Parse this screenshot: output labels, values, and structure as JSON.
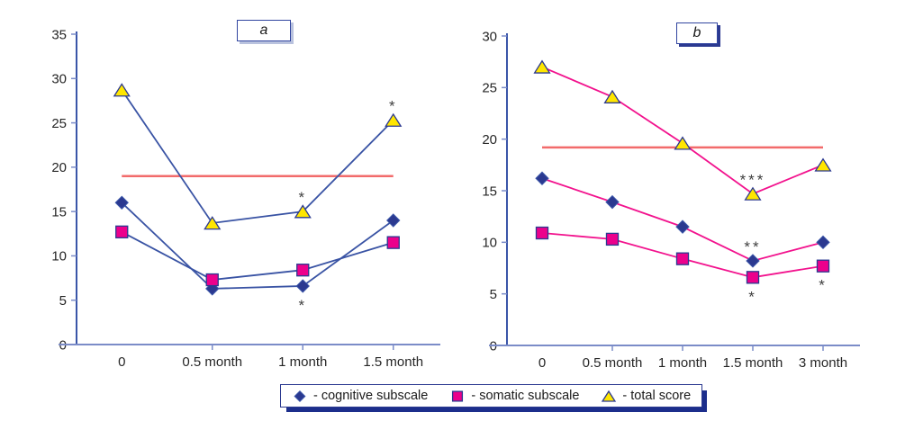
{
  "figure": {
    "background": "#ffffff"
  },
  "colors": {
    "y_axis": "#3a55a8",
    "x_axis": "#7b8cc8",
    "tick": "#7b8cc8",
    "tick_label": "#262626",
    "annotation": "#404040",
    "navy_marker": "#2b3990",
    "magenta_marker": "#ec008c",
    "yellow_marker": "#ffe600",
    "reference_red": "#f26b6b"
  },
  "legend": {
    "position": "bottom-center",
    "items": [
      {
        "marker": "diamond",
        "color": "#2b3990",
        "stroke": "#3a55a8",
        "label": "- cognitive subscale"
      },
      {
        "marker": "square",
        "color": "#ec008c",
        "stroke": "#2b3990",
        "label": "- somatic subscale"
      },
      {
        "marker": "triangle",
        "color": "#ffe600",
        "stroke": "#2b3990",
        "label": "- total score"
      }
    ]
  },
  "chart_data": [
    {
      "type": "line",
      "title": "a",
      "categories": [
        "0",
        "0.5 month",
        "1 month",
        "1.5 month"
      ],
      "xlabel": "",
      "ylabel": "",
      "ylim": [
        0,
        35
      ],
      "ytick_step": 5,
      "grid": false,
      "line_color": "#3953a4",
      "reference_line": {
        "value": 19,
        "color": "#f26b6b"
      },
      "series": [
        {
          "name": "cognitive subscale",
          "marker": "diamond",
          "color": "#2b3990",
          "stroke": "#3a55a8",
          "values": [
            16,
            6.3,
            6.6,
            14
          ],
          "annotations": [
            null,
            null,
            {
              "text": "*",
              "position": "below"
            },
            null
          ]
        },
        {
          "name": "somatic subscale",
          "marker": "square",
          "color": "#ec008c",
          "stroke": "#2b3990",
          "values": [
            12.7,
            7.3,
            8.4,
            11.5
          ],
          "annotations": [
            null,
            null,
            null,
            null
          ]
        },
        {
          "name": "total score",
          "marker": "triangle",
          "color": "#ffe600",
          "stroke": "#2b3990",
          "values": [
            28.7,
            13.7,
            15,
            25.3
          ],
          "annotations": [
            null,
            null,
            {
              "text": "*",
              "position": "above"
            },
            {
              "text": "*",
              "position": "above"
            }
          ]
        }
      ]
    },
    {
      "type": "line",
      "title": "b",
      "categories": [
        "0",
        "0.5 month",
        "1 month",
        "1.5 month",
        "3 month"
      ],
      "xlabel": "",
      "ylabel": "",
      "ylim": [
        0,
        30
      ],
      "ytick_step": 5,
      "grid": false,
      "line_color": "#f2128d",
      "reference_line": {
        "value": 19.2,
        "color": "#f26b6b"
      },
      "series": [
        {
          "name": "cognitive subscale",
          "marker": "diamond",
          "color": "#2b3990",
          "stroke": "#3a55a8",
          "values": [
            16.2,
            13.9,
            11.5,
            8.2,
            10
          ],
          "annotations": [
            null,
            null,
            null,
            {
              "text": "**",
              "position": "above"
            },
            null
          ]
        },
        {
          "name": "somatic subscale",
          "marker": "square",
          "color": "#ec008c",
          "stroke": "#2b3990",
          "values": [
            10.9,
            10.3,
            8.4,
            6.6,
            7.7
          ],
          "annotations": [
            null,
            null,
            null,
            {
              "text": "*",
              "position": "below"
            },
            {
              "text": "*",
              "position": "below"
            }
          ]
        },
        {
          "name": "total score",
          "marker": "triangle",
          "color": "#ffe600",
          "stroke": "#2b3990",
          "values": [
            27,
            24.1,
            19.6,
            14.7,
            17.5
          ],
          "annotations": [
            null,
            null,
            null,
            {
              "text": "***",
              "position": "above"
            },
            null
          ]
        }
      ]
    }
  ]
}
